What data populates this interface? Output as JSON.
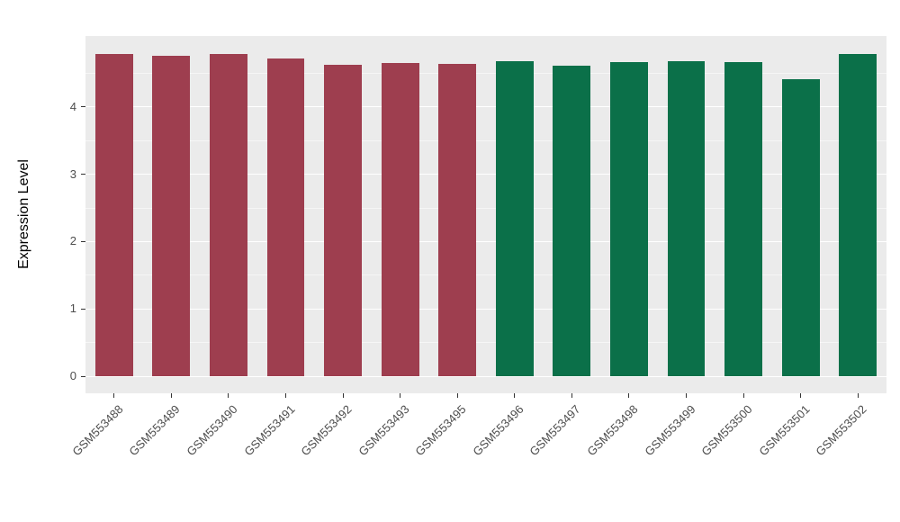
{
  "chart_data": {
    "type": "bar",
    "title": "",
    "xlabel": "",
    "ylabel": "Expression Level",
    "categories": [
      "GSM553488",
      "GSM553489",
      "GSM553490",
      "GSM553491",
      "GSM553492",
      "GSM553493",
      "GSM553495",
      "GSM553496",
      "GSM553497",
      "GSM553498",
      "GSM553499",
      "GSM553500",
      "GSM553501",
      "GSM553502"
    ],
    "values": [
      4.78,
      4.75,
      4.78,
      4.72,
      4.62,
      4.65,
      4.64,
      4.68,
      4.61,
      4.66,
      4.68,
      4.66,
      4.41,
      4.78
    ],
    "bar_colors": [
      "#9e3e4f",
      "#9e3e4f",
      "#9e3e4f",
      "#9e3e4f",
      "#9e3e4f",
      "#9e3e4f",
      "#9e3e4f",
      "#0b7049",
      "#0b7049",
      "#0b7049",
      "#0b7049",
      "#0b7049",
      "#0b7049",
      "#0b7049"
    ],
    "group_colors": {
      "group1": "#9e3e4f",
      "group2": "#0b7049"
    },
    "yticks": [
      0,
      1,
      2,
      3,
      4
    ],
    "minor_yticks": [
      0.5,
      1.5,
      2.5,
      3.5,
      4.5
    ],
    "ylim": [
      0,
      5
    ],
    "grid": true,
    "legend": "none",
    "panel_background": "#ebebeb",
    "gridline_color": "#ffffff",
    "bar_width_ratio": 0.66
  }
}
